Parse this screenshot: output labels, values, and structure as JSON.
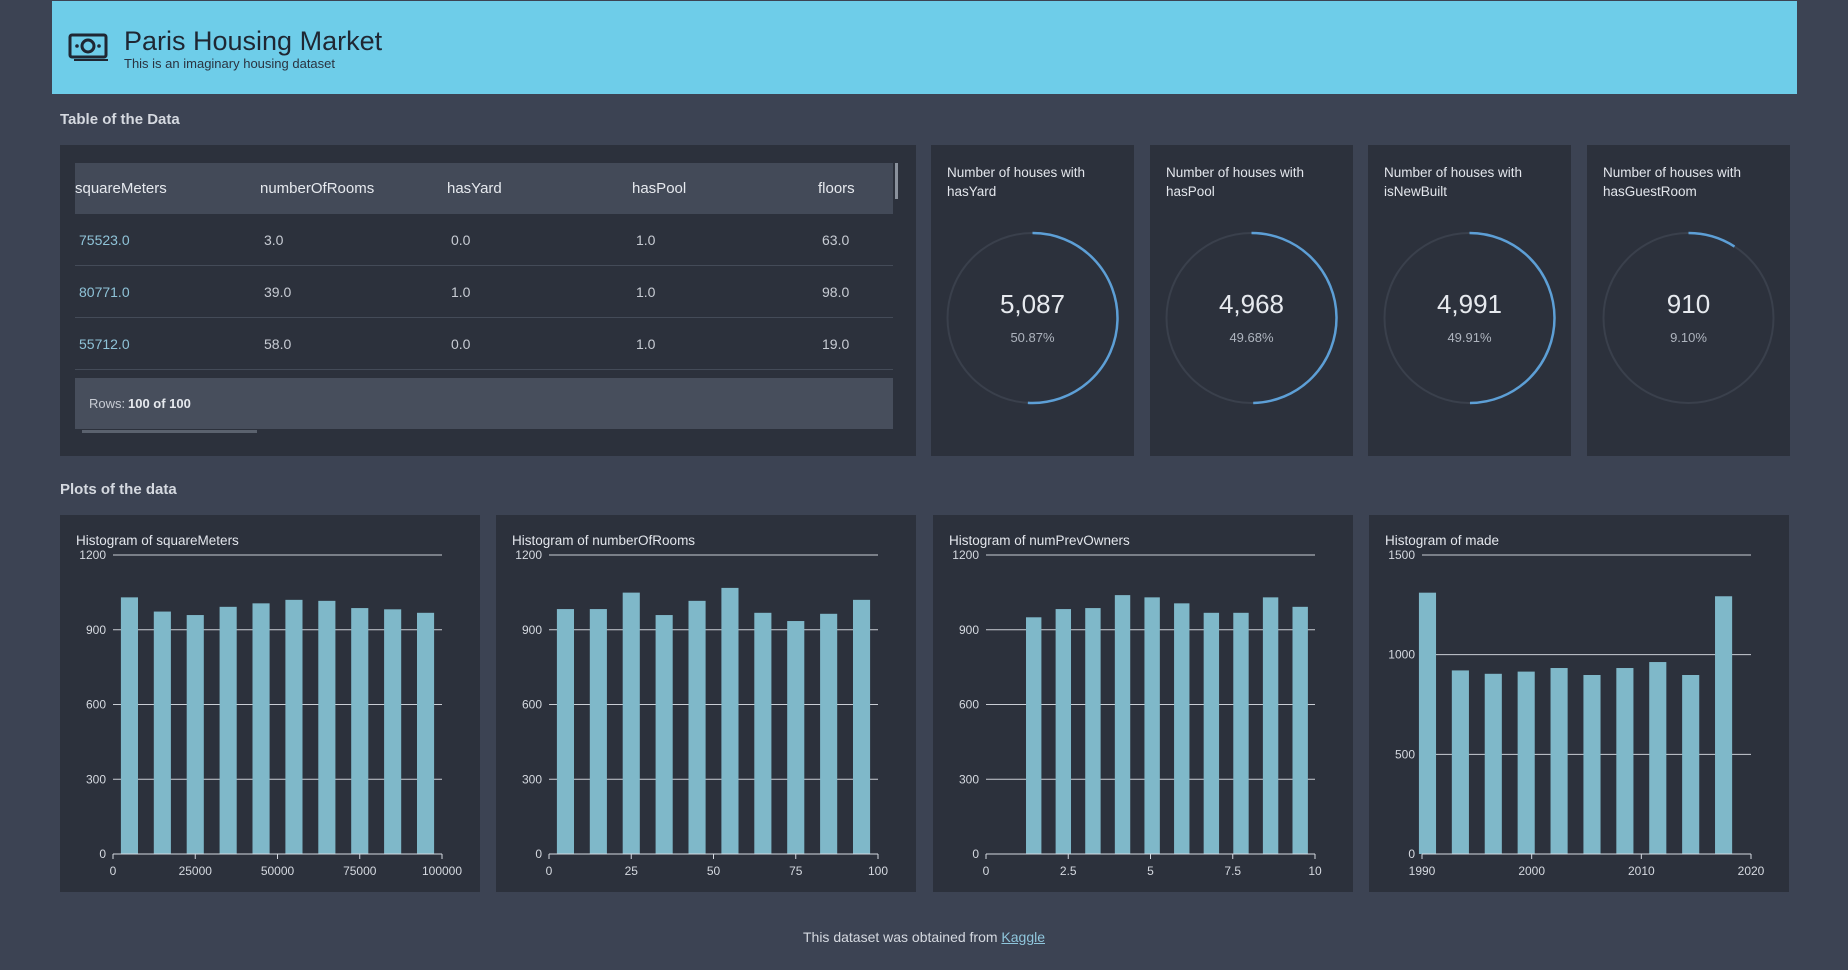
{
  "header": {
    "title": "Paris Housing Market",
    "subtitle": "This is an imaginary housing dataset"
  },
  "table_section": "Table of the Data",
  "table": {
    "columns": [
      "squareMeters",
      "numberOfRooms",
      "hasYard",
      "hasPool",
      "floors"
    ],
    "rows": [
      [
        "75523.0",
        "3.0",
        "0.0",
        "1.0",
        "63.0"
      ],
      [
        "80771.0",
        "39.0",
        "1.0",
        "1.0",
        "98.0"
      ],
      [
        "55712.0",
        "58.0",
        "0.0",
        "1.0",
        "19.0"
      ]
    ],
    "footer_label": "Rows:",
    "footer_value": "100 of 100"
  },
  "kpis": [
    {
      "title": "Number of houses with hasYard",
      "value_label": "5,087",
      "percent": 50.87,
      "percent_label": "50.87%"
    },
    {
      "title": "Number of houses with hasPool",
      "value_label": "4,968",
      "percent": 49.68,
      "percent_label": "49.68%"
    },
    {
      "title": "Number of houses with isNewBuilt",
      "value_label": "4,991",
      "percent": 49.91,
      "percent_label": "49.91%"
    },
    {
      "title": "Number of houses with hasGuestRoom",
      "value_label": "910",
      "percent": 9.1,
      "percent_label": "9.10%"
    }
  ],
  "plots_section": "Plots of the data",
  "chart_data": [
    {
      "type": "histogram",
      "title": "Histogram of squareMeters",
      "color": "#7fb8c9",
      "grid": true,
      "bins": [
        0,
        10000,
        20000,
        30000,
        40000,
        50000,
        60000,
        70000,
        80000,
        90000,
        100000
      ],
      "values": [
        1030,
        973,
        959,
        992,
        1006,
        1020,
        1016,
        987,
        982,
        968
      ],
      "xlim": [
        0,
        100000
      ],
      "xticks": [
        0,
        25000,
        50000,
        75000,
        100000
      ],
      "ylim": [
        0,
        1200
      ],
      "yticks": [
        0,
        300,
        600,
        900,
        1200
      ]
    },
    {
      "type": "histogram",
      "title": "Histogram of numberOfRooms",
      "color": "#7fb8c9",
      "grid": true,
      "bins": [
        0,
        10,
        20,
        30,
        40,
        50,
        60,
        70,
        80,
        90,
        100
      ],
      "values": [
        983,
        983,
        1049,
        959,
        1016,
        1068,
        968,
        935,
        964,
        1020
      ],
      "xlim": [
        0,
        100
      ],
      "xticks": [
        0,
        25,
        50,
        75,
        100
      ],
      "ylim": [
        0,
        1200
      ],
      "yticks": [
        0,
        300,
        600,
        900,
        1200
      ]
    },
    {
      "type": "histogram",
      "title": "Histogram of numPrevOwners",
      "color": "#7fb8c9",
      "grid": true,
      "bins": [
        1,
        1.9,
        2.8,
        3.7,
        4.6,
        5.5,
        6.4,
        7.3,
        8.2,
        9.1,
        10
      ],
      "values": [
        950,
        983,
        987,
        1039,
        1030,
        1006,
        968,
        968,
        1030,
        992
      ],
      "xlim": [
        0,
        10
      ],
      "xticks": [
        0,
        2.5,
        5,
        7.5,
        10
      ],
      "ylim": [
        0,
        1200
      ],
      "yticks": [
        0,
        300,
        600,
        900,
        1200
      ]
    },
    {
      "type": "histogram",
      "title": "Histogram of made",
      "color": "#7fb8c9",
      "grid": true,
      "bins": [
        1989,
        1992,
        1995,
        1998,
        2001,
        2004,
        2007,
        2010,
        2013,
        2016,
        2019
      ],
      "values": [
        1311,
        921,
        904,
        915,
        933,
        898,
        933,
        963,
        898,
        1293
      ],
      "xlim": [
        1990,
        2020
      ],
      "xticks": [
        1990,
        2000,
        2010,
        2020
      ],
      "ylim": [
        0,
        1500
      ],
      "yticks": [
        0,
        500,
        1000,
        1500
      ]
    }
  ],
  "footer": {
    "text": "This dataset was obtained from",
    "link": "Kaggle"
  }
}
